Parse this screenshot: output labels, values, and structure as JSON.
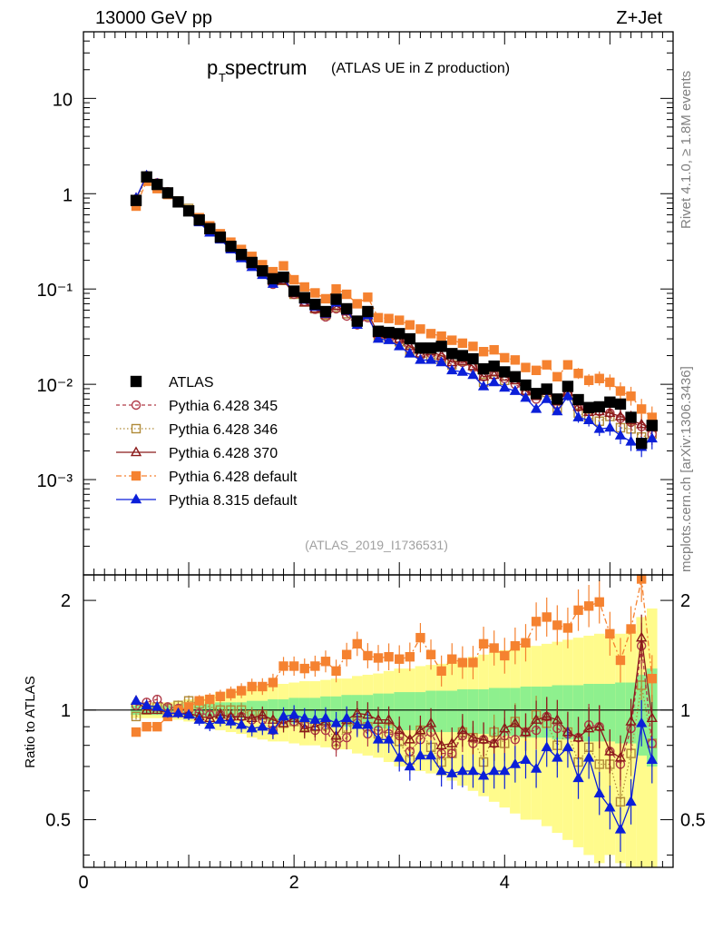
{
  "header": {
    "left": "13000 GeV pp",
    "right": "Z+Jet"
  },
  "title": {
    "main_p": "p",
    "main_sub": "T",
    "main_rest": " spectrum",
    "paren": "(ATLAS UE in Z production)"
  },
  "side_labels": {
    "rivet": "Rivet 4.1.0, ≥ 1.8M events",
    "mcplots": "mcplots.cern.ch [arXiv:1306.3436]"
  },
  "analysis_id": "(ATLAS_2019_I1736531)",
  "colors": {
    "ATLAS": "#000000",
    "p345": "#b03a48",
    "p346": "#b08a38",
    "p370": "#8b1a1a",
    "pdefault": "#f58230",
    "p8": "#0b1fd9",
    "band_inner": "#8ef08e",
    "band_outer": "#fffb8c"
  },
  "chart_data": [
    {
      "type": "scatter",
      "panel": "main",
      "xlim": [
        0,
        5.6
      ],
      "ylim": [
        0.0001,
        50
      ],
      "yscale": "log",
      "ytick_labels": [
        "10⁻³",
        "10⁻²",
        "10⁻¹",
        "1",
        "10"
      ],
      "x": [
        0.5,
        0.6,
        0.7,
        0.8,
        0.9,
        1.0,
        1.1,
        1.2,
        1.3,
        1.4,
        1.5,
        1.6,
        1.7,
        1.8,
        1.9,
        2.0,
        2.1,
        2.2,
        2.3,
        2.4,
        2.5,
        2.6,
        2.7,
        2.8,
        2.9,
        3.0,
        3.1,
        3.2,
        3.3,
        3.4,
        3.5,
        3.6,
        3.7,
        3.8,
        3.9,
        4.0,
        4.1,
        4.2,
        4.3,
        4.4,
        4.5,
        4.6,
        4.7,
        4.8,
        4.9,
        5.0,
        5.1,
        5.2,
        5.3,
        5.4
      ],
      "series": [
        {
          "name": "ATLAS",
          "key": "ATLAS",
          "values": [
            0.85,
            1.5,
            1.25,
            1.02,
            0.82,
            0.66,
            0.53,
            0.43,
            0.35,
            0.28,
            0.23,
            0.19,
            0.155,
            0.128,
            0.133,
            0.095,
            0.081,
            0.069,
            0.058,
            0.078,
            0.062,
            0.046,
            0.058,
            0.036,
            0.035,
            0.034,
            0.03,
            0.024,
            0.024,
            0.025,
            0.021,
            0.02,
            0.0185,
            0.0145,
            0.0155,
            0.0135,
            0.012,
            0.0098,
            0.008,
            0.0089,
            0.007,
            0.0095,
            0.0069,
            0.0057,
            0.0058,
            0.0065,
            0.0062,
            0.0045,
            0.0024,
            0.0037
          ]
        },
        {
          "name": "Pythia 6.428 345",
          "key": "p345",
          "values": [
            0.88,
            1.55,
            1.3,
            1.05,
            0.83,
            0.66,
            0.52,
            0.42,
            0.34,
            0.27,
            0.22,
            0.18,
            0.145,
            0.112,
            0.125,
            0.088,
            0.074,
            0.061,
            0.051,
            0.062,
            0.052,
            0.042,
            0.05,
            0.032,
            0.03,
            0.029,
            0.023,
            0.02,
            0.021,
            0.019,
            0.016,
            0.017,
            0.015,
            0.012,
            0.0125,
            0.0115,
            0.01,
            0.0085,
            0.007,
            0.0085,
            0.0062,
            0.0082,
            0.0058,
            0.0052,
            0.0052,
            0.005,
            0.0044,
            0.004,
            0.0036,
            0.003
          ]
        },
        {
          "name": "Pythia 6.428 346",
          "key": "p346",
          "values": [
            0.82,
            1.5,
            1.27,
            1.03,
            0.84,
            0.7,
            0.55,
            0.44,
            0.35,
            0.28,
            0.23,
            0.185,
            0.15,
            0.118,
            0.123,
            0.088,
            0.073,
            0.062,
            0.053,
            0.064,
            0.055,
            0.043,
            0.052,
            0.031,
            0.031,
            0.028,
            0.022,
            0.021,
            0.019,
            0.018,
            0.016,
            0.0175,
            0.0155,
            0.0105,
            0.0135,
            0.011,
            0.0112,
            0.0085,
            0.0078,
            0.0082,
            0.0056,
            0.0083,
            0.005,
            0.0045,
            0.0041,
            0.0046,
            0.0035,
            0.0034,
            0.0028,
            0.003
          ]
        },
        {
          "name": "Pythia 6.428 370",
          "key": "p370",
          "values": [
            0.9,
            1.5,
            1.25,
            1.0,
            0.8,
            0.65,
            0.51,
            0.41,
            0.34,
            0.27,
            0.22,
            0.18,
            0.15,
            0.12,
            0.122,
            0.09,
            0.072,
            0.062,
            0.054,
            0.066,
            0.058,
            0.045,
            0.056,
            0.034,
            0.033,
            0.03,
            0.025,
            0.021,
            0.022,
            0.02,
            0.017,
            0.0175,
            0.0155,
            0.012,
            0.0125,
            0.012,
            0.011,
            0.0085,
            0.0075,
            0.0085,
            0.0066,
            0.0083,
            0.0058,
            0.0051,
            0.0052,
            0.005,
            0.0046,
            0.0042,
            0.0038,
            0.0035
          ]
        },
        {
          "name": "Pythia 6.428 default",
          "key": "pdefault",
          "values": [
            0.74,
            1.35,
            1.13,
            0.98,
            0.82,
            0.67,
            0.56,
            0.46,
            0.38,
            0.31,
            0.26,
            0.22,
            0.18,
            0.152,
            0.175,
            0.125,
            0.105,
            0.091,
            0.079,
            0.1,
            0.088,
            0.07,
            0.082,
            0.05,
            0.049,
            0.047,
            0.042,
            0.038,
            0.034,
            0.032,
            0.029,
            0.027,
            0.025,
            0.022,
            0.023,
            0.019,
            0.018,
            0.015,
            0.014,
            0.016,
            0.012,
            0.016,
            0.013,
            0.011,
            0.0115,
            0.0105,
            0.0085,
            0.0075,
            0.0055,
            0.0045
          ]
        },
        {
          "name": "Pythia 8.315 default",
          "key": "p8",
          "values": [
            0.9,
            1.55,
            1.27,
            1.0,
            0.8,
            0.64,
            0.5,
            0.39,
            0.33,
            0.26,
            0.21,
            0.17,
            0.14,
            0.113,
            0.128,
            0.092,
            0.077,
            0.065,
            0.055,
            0.072,
            0.059,
            0.042,
            0.053,
            0.03,
            0.029,
            0.025,
            0.021,
            0.018,
            0.018,
            0.017,
            0.014,
            0.0135,
            0.0125,
            0.0095,
            0.0105,
            0.0092,
            0.0085,
            0.0072,
            0.0055,
            0.007,
            0.0052,
            0.0075,
            0.0045,
            0.0042,
            0.0034,
            0.0035,
            0.0029,
            0.0025,
            0.0022,
            0.0027
          ]
        }
      ]
    },
    {
      "type": "scatter",
      "panel": "ratio",
      "ylabel": "Ratio to ATLAS",
      "reference_value": 1,
      "xlim": [
        0,
        5.6
      ],
      "ylim": [
        0.37,
        2.35
      ],
      "xtick_labels": [
        "0",
        "2",
        "4"
      ],
      "xticks": [
        0,
        2,
        4
      ],
      "ytick_labels": [
        "0.5",
        "1",
        "2"
      ],
      "yticks": [
        0.5,
        1,
        2
      ],
      "x": [
        0.5,
        0.6,
        0.7,
        0.8,
        0.9,
        1.0,
        1.1,
        1.2,
        1.3,
        1.4,
        1.5,
        1.6,
        1.7,
        1.8,
        1.9,
        2.0,
        2.1,
        2.2,
        2.3,
        2.4,
        2.5,
        2.6,
        2.7,
        2.8,
        2.9,
        3.0,
        3.1,
        3.2,
        3.3,
        3.4,
        3.5,
        3.6,
        3.7,
        3.8,
        3.9,
        4.0,
        4.1,
        4.2,
        4.3,
        4.4,
        4.5,
        4.6,
        4.7,
        4.8,
        4.9,
        5.0,
        5.1,
        5.2,
        5.3,
        5.4
      ],
      "band_inner_halfwidth": [
        0.03,
        0.03,
        0.03,
        0.03,
        0.03,
        0.04,
        0.04,
        0.04,
        0.05,
        0.05,
        0.05,
        0.06,
        0.06,
        0.07,
        0.07,
        0.08,
        0.08,
        0.08,
        0.09,
        0.09,
        0.1,
        0.1,
        0.1,
        0.11,
        0.11,
        0.12,
        0.12,
        0.12,
        0.13,
        0.13,
        0.13,
        0.14,
        0.14,
        0.14,
        0.15,
        0.15,
        0.15,
        0.16,
        0.16,
        0.16,
        0.17,
        0.17,
        0.17,
        0.18,
        0.18,
        0.18,
        0.19,
        0.19,
        0.25,
        0.3
      ],
      "band_outer_halfwidth": [
        0.05,
        0.05,
        0.05,
        0.05,
        0.06,
        0.07,
        0.08,
        0.1,
        0.12,
        0.13,
        0.14,
        0.16,
        0.17,
        0.18,
        0.18,
        0.19,
        0.2,
        0.2,
        0.21,
        0.22,
        0.22,
        0.24,
        0.25,
        0.26,
        0.28,
        0.3,
        0.3,
        0.32,
        0.33,
        0.34,
        0.36,
        0.38,
        0.4,
        0.42,
        0.44,
        0.46,
        0.48,
        0.5,
        0.5,
        0.52,
        0.54,
        0.56,
        0.58,
        0.6,
        0.62,
        0.6,
        0.62,
        0.65,
        0.8,
        0.9
      ],
      "series": [
        {
          "name": "Pythia 6.428 345",
          "key": "p345",
          "values": [
            1.03,
            1.05,
            1.07,
            1.02,
            1.01,
            1.0,
            0.98,
            0.97,
            0.97,
            0.95,
            0.96,
            0.94,
            0.94,
            0.88,
            0.94,
            0.93,
            0.91,
            0.88,
            0.88,
            0.8,
            0.84,
            0.92,
            0.86,
            0.88,
            0.86,
            0.85,
            0.77,
            0.83,
            0.87,
            0.76,
            0.76,
            0.85,
            0.81,
            0.83,
            0.81,
            0.85,
            0.83,
            0.87,
            0.88,
            0.96,
            0.89,
            0.86,
            0.84,
            0.91,
            0.9,
            0.77,
            0.71,
            0.89,
            1.5,
            0.81
          ]
        },
        {
          "name": "Pythia 6.428 346",
          "key": "p346",
          "values": [
            0.96,
            1.0,
            1.02,
            1.01,
            1.03,
            1.06,
            1.04,
            1.02,
            1.0,
            1.0,
            1.0,
            0.97,
            0.97,
            0.92,
            0.92,
            0.93,
            0.9,
            0.9,
            0.91,
            0.82,
            0.89,
            0.93,
            0.9,
            0.86,
            0.89,
            0.82,
            0.73,
            0.88,
            0.79,
            0.72,
            0.76,
            0.87,
            0.84,
            0.72,
            0.87,
            0.81,
            0.93,
            0.87,
            0.97,
            0.92,
            0.8,
            0.87,
            0.72,
            0.79,
            0.71,
            0.71,
            0.56,
            0.76,
            1.17,
            0.81
          ]
        },
        {
          "name": "Pythia 6.428 370",
          "key": "p370",
          "values": [
            1.06,
            1.0,
            1.0,
            0.98,
            0.98,
            0.98,
            0.96,
            0.95,
            0.97,
            0.96,
            0.96,
            0.95,
            0.97,
            0.94,
            0.92,
            0.95,
            0.89,
            0.9,
            0.93,
            0.85,
            0.94,
            0.98,
            0.97,
            0.94,
            0.94,
            0.88,
            0.83,
            0.88,
            0.92,
            0.8,
            0.81,
            0.88,
            0.84,
            0.83,
            0.81,
            0.89,
            0.92,
            0.87,
            0.94,
            0.96,
            0.94,
            0.87,
            0.84,
            0.89,
            0.9,
            0.77,
            0.74,
            0.93,
            1.58,
            0.95
          ]
        },
        {
          "name": "Pythia 6.428 default",
          "key": "pdefault",
          "values": [
            0.87,
            0.9,
            0.9,
            0.96,
            1.0,
            1.02,
            1.06,
            1.07,
            1.09,
            1.11,
            1.13,
            1.16,
            1.16,
            1.19,
            1.32,
            1.32,
            1.3,
            1.32,
            1.36,
            1.28,
            1.42,
            1.52,
            1.41,
            1.39,
            1.4,
            1.38,
            1.4,
            1.58,
            1.42,
            1.28,
            1.38,
            1.35,
            1.35,
            1.52,
            1.48,
            1.41,
            1.5,
            1.53,
            1.75,
            1.8,
            1.71,
            1.68,
            1.88,
            1.93,
            1.98,
            1.62,
            1.37,
            1.67,
            2.29,
            1.22
          ]
        },
        {
          "name": "Pythia 8.315 default",
          "key": "p8",
          "values": [
            1.06,
            1.03,
            1.02,
            0.98,
            0.98,
            0.97,
            0.94,
            0.91,
            0.94,
            0.93,
            0.91,
            0.89,
            0.9,
            0.88,
            0.96,
            0.97,
            0.95,
            0.94,
            0.95,
            0.92,
            0.95,
            0.91,
            0.91,
            0.83,
            0.83,
            0.74,
            0.7,
            0.75,
            0.75,
            0.68,
            0.67,
            0.68,
            0.68,
            0.66,
            0.68,
            0.68,
            0.71,
            0.73,
            0.69,
            0.79,
            0.74,
            0.79,
            0.65,
            0.74,
            0.59,
            0.54,
            0.47,
            0.56,
            0.92,
            0.73
          ]
        }
      ]
    }
  ]
}
